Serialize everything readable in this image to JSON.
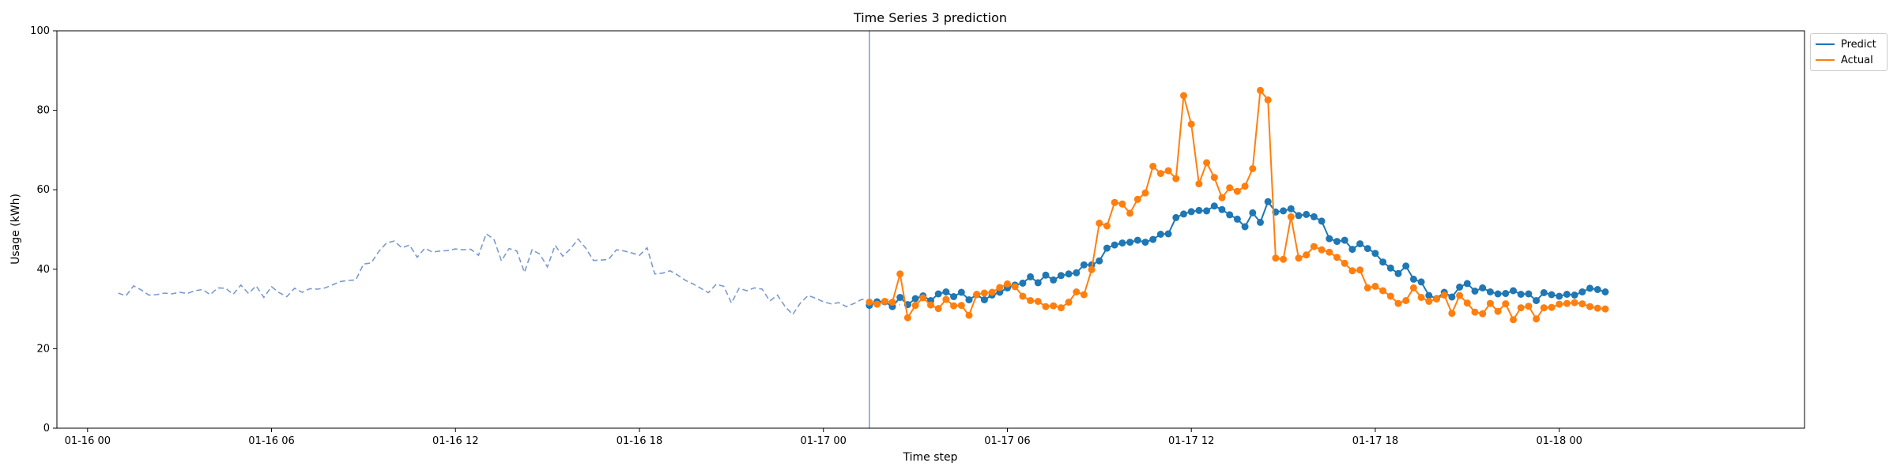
{
  "chart_data": {
    "type": "line",
    "title": "Time Series 3 prediction",
    "xlabel": "Time step",
    "ylabel": "Usage (kWh)",
    "ylim": [
      0,
      100
    ],
    "xlim_hours": [
      -1.0,
      56.0
    ],
    "yticks": [
      "0",
      "20",
      "40",
      "60",
      "80",
      "100"
    ],
    "xticks": [
      {
        "hour": 0,
        "label": "01-16 00"
      },
      {
        "hour": 6,
        "label": "01-16 06"
      },
      {
        "hour": 12,
        "label": "01-16 12"
      },
      {
        "hour": 18,
        "label": "01-16 18"
      },
      {
        "hour": 24,
        "label": "01-17 00"
      },
      {
        "hour": 30,
        "label": "01-17 06"
      },
      {
        "hour": 36,
        "label": "01-17 12"
      },
      {
        "hour": 42,
        "label": "01-17 18"
      },
      {
        "hour": 48,
        "label": "01-18 00"
      }
    ],
    "split_line_hour": 25.5,
    "history": {
      "start_hour": 1.0,
      "step_hours": 0.25,
      "color": "#7b9acb",
      "style": "dashed",
      "values": [
        34.0,
        33.3,
        35.8,
        34.8,
        33.5,
        33.6,
        34.0,
        33.8,
        34.2,
        33.9,
        34.6,
        34.9,
        33.6,
        35.3,
        35.2,
        33.7,
        36.0,
        33.9,
        35.8,
        32.9,
        35.6,
        34.1,
        33.1,
        35.2,
        34.2,
        35.1,
        35.0,
        35.3,
        36.1,
        36.9,
        37.2,
        37.3,
        41.3,
        41.6,
        44.5,
        46.6,
        47.1,
        45.4,
        46.1,
        43.0,
        45.3,
        44.3,
        44.6,
        44.7,
        45.1,
        44.9,
        45.0,
        43.5,
        48.9,
        47.6,
        42.1,
        45.2,
        44.6,
        39.2,
        44.9,
        43.8,
        40.6,
        46.0,
        43.3,
        45.1,
        47.6,
        45.3,
        42.2,
        42.3,
        42.5,
        44.9,
        44.6,
        44.1,
        43.5,
        45.4,
        38.8,
        39.0,
        39.6,
        38.5,
        37.2,
        36.3,
        35.2,
        34.1,
        36.2,
        35.7,
        31.5,
        35.2,
        34.6,
        35.3,
        35.0,
        32.0,
        33.5,
        30.6,
        28.6,
        31.5,
        33.4,
        32.7,
        31.8,
        31.3,
        31.6,
        30.6,
        31.4,
        32.4,
        32.1,
        31.7,
        32.5,
        32.1,
        31.0
      ]
    },
    "start_hour": 25.5,
    "step_hours": 0.25,
    "series": [
      {
        "name": "Predict",
        "color": "#1f77b4",
        "values": [
          30.9,
          31.8,
          31.8,
          30.6,
          32.9,
          31.1,
          32.6,
          33.3,
          32.1,
          33.8,
          34.3,
          33.1,
          34.2,
          32.3,
          33.6,
          32.3,
          33.5,
          34.2,
          35.3,
          36.0,
          36.5,
          38.1,
          36.6,
          38.5,
          37.3,
          38.4,
          38.8,
          39.1,
          41.1,
          41.1,
          42.1,
          45.3,
          46.1,
          46.6,
          46.8,
          47.3,
          46.8,
          47.5,
          48.8,
          48.9,
          53.0,
          53.9,
          54.5,
          54.8,
          54.7,
          55.9,
          55.0,
          53.7,
          52.6,
          50.7,
          54.2,
          51.8,
          57.0,
          54.4,
          54.7,
          55.2,
          53.5,
          53.8,
          53.2,
          52.1,
          47.7,
          47.0,
          47.3,
          45.0,
          46.4,
          45.2,
          44.0,
          41.8,
          40.3,
          38.9,
          40.8,
          37.5,
          36.8,
          33.4,
          32.6,
          34.2,
          33.0,
          35.5,
          36.4,
          34.5,
          35.3,
          34.3,
          33.8,
          33.9,
          34.6,
          33.7,
          33.8,
          32.1,
          34.1,
          33.6,
          33.2,
          33.7,
          33.5,
          34.3,
          35.2,
          34.9,
          34.3
        ]
      },
      {
        "name": "Actual",
        "color": "#ff7f0e",
        "values": [
          31.7,
          31.2,
          31.9,
          31.7,
          38.8,
          27.8,
          30.9,
          32.8,
          31.0,
          30.1,
          32.4,
          30.8,
          30.9,
          28.4,
          33.7,
          34.0,
          34.2,
          35.4,
          36.3,
          35.6,
          33.2,
          32.1,
          31.9,
          30.6,
          30.8,
          30.3,
          31.7,
          34.3,
          33.6,
          39.9,
          51.6,
          50.9,
          56.8,
          56.4,
          54.1,
          57.6,
          59.2,
          65.9,
          64.1,
          64.8,
          62.8,
          83.7,
          76.5,
          61.5,
          66.8,
          63.1,
          58.0,
          60.5,
          59.6,
          60.9,
          65.3,
          85.0,
          82.6,
          42.8,
          42.5,
          53.2,
          42.8,
          43.6,
          45.7,
          44.9,
          44.3,
          43.0,
          41.5,
          39.6,
          39.8,
          35.3,
          35.7,
          34.6,
          33.2,
          31.4,
          32.1,
          35.3,
          32.9,
          31.9,
          32.5,
          33.5,
          28.9,
          33.4,
          31.5,
          29.2,
          28.8,
          31.4,
          29.4,
          31.3,
          27.3,
          30.3,
          30.7,
          27.5,
          30.3,
          30.4,
          31.2,
          31.4,
          31.6,
          31.3,
          30.6,
          30.2,
          30.0
        ]
      }
    ],
    "legend": {
      "position": "outside-top-right",
      "entries": [
        "Predict",
        "Actual"
      ]
    }
  }
}
